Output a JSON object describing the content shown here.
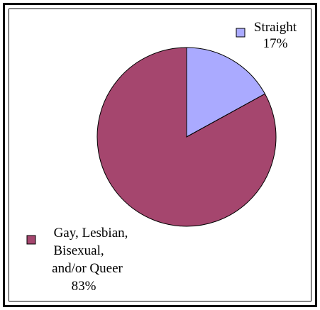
{
  "chart_data": {
    "type": "pie",
    "title": "",
    "slices": [
      {
        "label_lines": [
          "Straight"
        ],
        "value": 17,
        "value_label": "17%",
        "color": "#aaaaff"
      },
      {
        "label_lines": [
          "Gay, Lesbian,",
          "Bisexual,",
          "and/or Queer"
        ],
        "value": 83,
        "value_label": "83%",
        "color": "#a5466e"
      }
    ],
    "start_angle_deg": 0,
    "direction": "clockwise",
    "legend": "none"
  }
}
